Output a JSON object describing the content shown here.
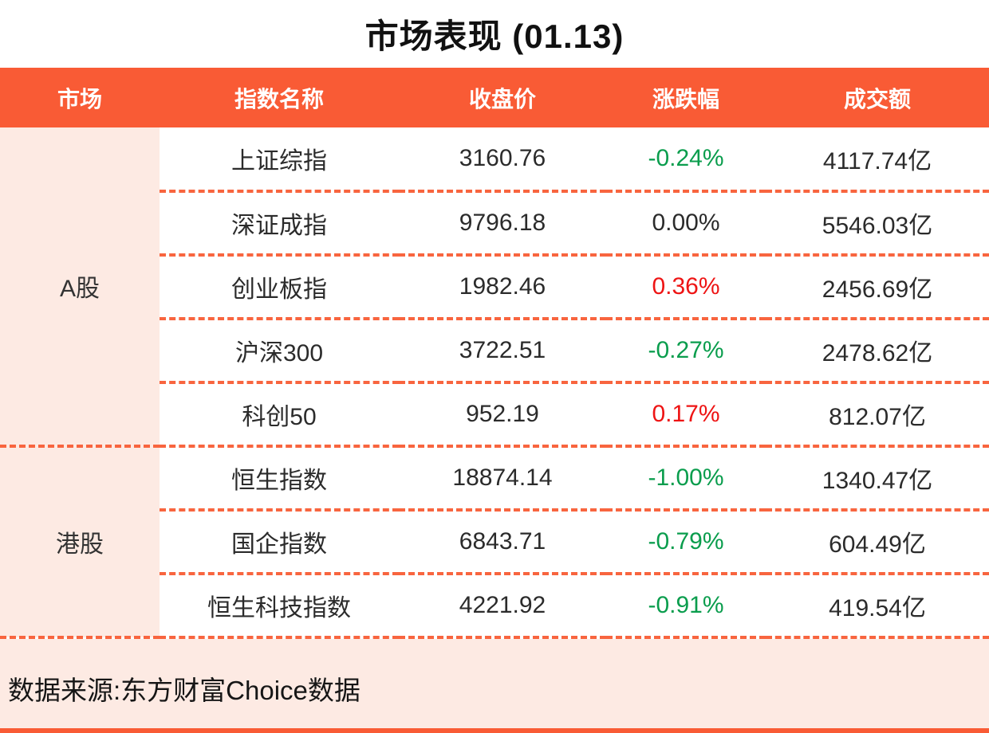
{
  "title": "市场表现 (01.13)",
  "colors": {
    "header_orange": "#f95b35",
    "divider_orange": "#f8653f",
    "light_peach": "#fdeae3",
    "up_red": "#ee1414",
    "down_green": "#0a9d4d",
    "text_dark": "#2b2b2b"
  },
  "table": {
    "headers": [
      "市场",
      "指数名称",
      "收盘价",
      "涨跌幅",
      "成交额"
    ],
    "groups": [
      {
        "market": "A股",
        "rows": [
          {
            "name": "上证综指",
            "close": "3160.76",
            "change": "-0.24%",
            "direction": "down",
            "volume": "4117.74亿"
          },
          {
            "name": "深证成指",
            "close": "9796.18",
            "change": "0.00%",
            "direction": "flat",
            "volume": "5546.03亿"
          },
          {
            "name": "创业板指",
            "close": "1982.46",
            "change": "0.36%",
            "direction": "up",
            "volume": "2456.69亿"
          },
          {
            "name": "沪深300",
            "close": "3722.51",
            "change": "-0.27%",
            "direction": "down",
            "volume": "2478.62亿"
          },
          {
            "name": "科创50",
            "close": "952.19",
            "change": "0.17%",
            "direction": "up",
            "volume": "812.07亿"
          }
        ]
      },
      {
        "market": "港股",
        "rows": [
          {
            "name": "恒生指数",
            "close": "18874.14",
            "change": "-1.00%",
            "direction": "down",
            "volume": "1340.47亿"
          },
          {
            "name": "国企指数",
            "close": "6843.71",
            "change": "-0.79%",
            "direction": "down",
            "volume": "604.49亿"
          },
          {
            "name": "恒生科技指数",
            "close": "4221.92",
            "change": "-0.91%",
            "direction": "down",
            "volume": "419.54亿"
          }
        ]
      }
    ]
  },
  "footer": {
    "source": "数据来源:东方财富Choice数据"
  },
  "chart_data": {
    "type": "table",
    "title": "市场表现 (01.13)",
    "columns": [
      "市场",
      "指数名称",
      "收盘价",
      "涨跌幅",
      "成交额"
    ],
    "rows": [
      [
        "A股",
        "上证综指",
        3160.76,
        "-0.24%",
        "4117.74亿"
      ],
      [
        "A股",
        "深证成指",
        9796.18,
        "0.00%",
        "5546.03亿"
      ],
      [
        "A股",
        "创业板指",
        1982.46,
        "0.36%",
        "2456.69亿"
      ],
      [
        "A股",
        "沪深300",
        3722.51,
        "-0.27%",
        "2478.62亿"
      ],
      [
        "A股",
        "科创50",
        952.19,
        "0.17%",
        "812.07亿"
      ],
      [
        "港股",
        "恒生指数",
        18874.14,
        "-1.00%",
        "1340.47亿"
      ],
      [
        "港股",
        "国企指数",
        6843.71,
        "-0.79%",
        "604.49亿"
      ],
      [
        "港股",
        "恒生科技指数",
        4221.92,
        "-0.91%",
        "419.54亿"
      ]
    ],
    "notes": "negative change rendered green, positive change rendered red (CN market convention)"
  }
}
